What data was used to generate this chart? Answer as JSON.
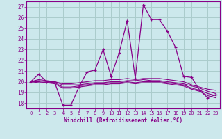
{
  "xlabel": "Windchill (Refroidissement éolien,°C)",
  "background_color": "#cce8ec",
  "line_color": "#880088",
  "grid_color": "#aacccc",
  "xlim": [
    -0.5,
    23.5
  ],
  "ylim": [
    17.5,
    27.5
  ],
  "yticks": [
    18,
    19,
    20,
    21,
    22,
    23,
    24,
    25,
    26,
    27
  ],
  "xticks": [
    0,
    1,
    2,
    3,
    4,
    5,
    6,
    7,
    8,
    9,
    10,
    11,
    12,
    13,
    14,
    15,
    16,
    17,
    18,
    19,
    20,
    21,
    22,
    23
  ],
  "series": [
    {
      "x": [
        0,
        1,
        2,
        3,
        4,
        5,
        6,
        7,
        8,
        9,
        10,
        11,
        12,
        13,
        14,
        15,
        16,
        17,
        18,
        19,
        20,
        21,
        22,
        23
      ],
      "y": [
        20.0,
        20.7,
        20.0,
        19.9,
        17.8,
        17.8,
        19.5,
        20.9,
        21.1,
        23.0,
        20.5,
        22.7,
        25.7,
        20.3,
        27.2,
        25.8,
        25.8,
        24.7,
        23.2,
        20.5,
        20.4,
        19.2,
        18.5,
        18.8
      ],
      "markers": true
    },
    {
      "x": [
        0,
        1,
        2,
        3,
        4,
        5,
        6,
        7,
        8,
        9,
        10,
        11,
        12,
        13,
        14,
        15,
        16,
        17,
        18,
        19,
        20,
        21,
        22,
        23
      ],
      "y": [
        20.0,
        20.2,
        20.1,
        20.0,
        19.8,
        19.8,
        19.9,
        20.0,
        20.1,
        20.1,
        20.2,
        20.2,
        20.3,
        20.2,
        20.3,
        20.3,
        20.3,
        20.2,
        20.1,
        20.0,
        19.7,
        19.5,
        19.3,
        19.2
      ],
      "markers": false
    },
    {
      "x": [
        0,
        1,
        2,
        3,
        4,
        5,
        6,
        7,
        8,
        9,
        10,
        11,
        12,
        13,
        14,
        15,
        16,
        17,
        18,
        19,
        20,
        21,
        22,
        23
      ],
      "y": [
        20.0,
        20.1,
        20.0,
        20.0,
        19.7,
        19.7,
        19.7,
        19.8,
        19.9,
        19.9,
        20.0,
        20.0,
        20.1,
        20.1,
        20.2,
        20.1,
        20.1,
        20.0,
        19.9,
        19.8,
        19.6,
        19.4,
        19.1,
        18.9
      ],
      "markers": false
    },
    {
      "x": [
        0,
        1,
        2,
        3,
        4,
        5,
        6,
        7,
        8,
        9,
        10,
        11,
        12,
        13,
        14,
        15,
        16,
        17,
        18,
        19,
        20,
        21,
        22,
        23
      ],
      "y": [
        20.0,
        20.0,
        19.9,
        19.9,
        19.5,
        19.5,
        19.6,
        19.7,
        19.8,
        19.8,
        19.9,
        19.9,
        20.0,
        19.9,
        20.0,
        20.0,
        20.0,
        19.9,
        19.8,
        19.7,
        19.4,
        19.2,
        18.9,
        18.7
      ],
      "markers": false
    },
    {
      "x": [
        0,
        1,
        2,
        3,
        4,
        5,
        6,
        7,
        8,
        9,
        10,
        11,
        12,
        13,
        14,
        15,
        16,
        17,
        18,
        19,
        20,
        21,
        22,
        23
      ],
      "y": [
        20.0,
        19.9,
        19.9,
        19.8,
        19.4,
        19.4,
        19.5,
        19.6,
        19.7,
        19.7,
        19.8,
        19.8,
        19.9,
        19.8,
        19.9,
        19.9,
        19.9,
        19.8,
        19.7,
        19.6,
        19.3,
        19.1,
        18.7,
        18.5
      ],
      "markers": false
    }
  ]
}
